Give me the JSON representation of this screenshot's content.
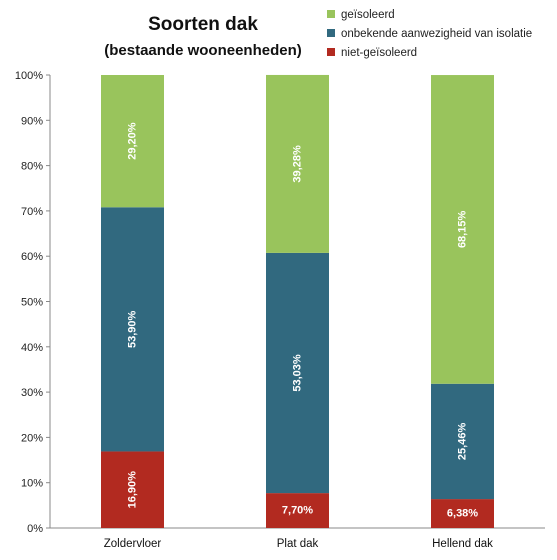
{
  "chart_data": {
    "type": "bar",
    "stacked": true,
    "title": "Soorten dak",
    "subtitle": "(bestaande wooneenheden)",
    "categories": [
      "Zoldervloer",
      "Plat dak",
      "Hellend dak"
    ],
    "series": [
      {
        "name": "niet-geïsoleerd",
        "color": "#b22a20",
        "values": [
          16.9,
          7.7,
          6.38
        ],
        "labels": [
          "16,90%",
          "7,70%",
          "6,38%"
        ]
      },
      {
        "name": "onbekende aanwezigheid van isolatie",
        "color": "#31697f",
        "values": [
          53.9,
          53.03,
          25.46
        ],
        "labels": [
          "53,90%",
          "53,03%",
          "25,46%"
        ]
      },
      {
        "name": "geïsoleerd",
        "color": "#99c45c",
        "values": [
          29.2,
          39.28,
          68.15
        ],
        "labels": [
          "29,20%",
          "39,28%",
          "68,15%"
        ]
      }
    ],
    "legend_order": [
      2,
      1,
      0
    ],
    "yticks": [
      "0%",
      "10%",
      "20%",
      "30%",
      "40%",
      "50%",
      "60%",
      "70%",
      "80%",
      "90%",
      "100%"
    ],
    "ylim": [
      0,
      100
    ],
    "legend_position": "top-right",
    "grid": false
  }
}
